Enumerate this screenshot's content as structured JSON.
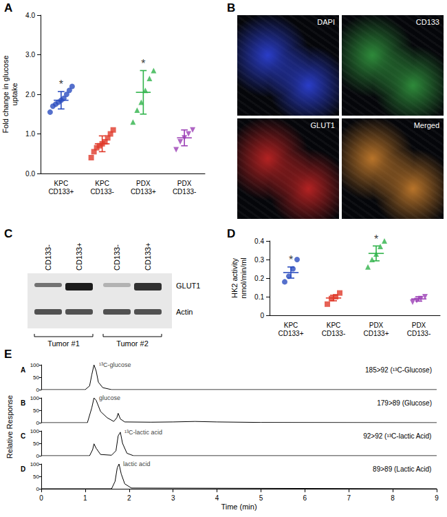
{
  "chart_data": [
    {
      "panel": "A",
      "type": "scatter",
      "y_label": "Fold change in glucose uptake",
      "categories": [
        "KPC CD133+",
        "KPC CD133-",
        "PDX CD133+",
        "PDX CD133-"
      ],
      "ylim": [
        0,
        4
      ],
      "yticks": [
        {
          "value": 0,
          "label": "0.0"
        },
        {
          "value": 1,
          "label": "1.0"
        },
        {
          "value": 2,
          "label": "2.0"
        },
        {
          "value": 3,
          "label": "3.0"
        },
        {
          "value": 4,
          "label": "4.0"
        }
      ],
      "grid": false,
      "groups": [
        {
          "category": "KPC CD133+",
          "color": "#2a4cbf",
          "marker": "circle",
          "values": [
            1.55,
            1.7,
            1.75,
            1.8,
            1.85,
            1.9,
            2.0,
            2.1,
            2.2
          ],
          "mean": 1.85,
          "error": 0.22
        },
        {
          "category": "KPC CD133-",
          "color": "#e03a2a",
          "marker": "square",
          "values": [
            0.4,
            0.55,
            0.65,
            0.7,
            0.75,
            0.8,
            0.9,
            1.0,
            1.1
          ],
          "mean": 0.75,
          "error": 0.2
        },
        {
          "category": "PDX CD133+",
          "color": "#2fb34a",
          "marker": "triangle",
          "values": [
            1.3,
            1.6,
            1.8,
            2.1,
            2.4,
            2.6
          ],
          "mean": 2.05,
          "error": 0.55
        },
        {
          "category": "PDX CD133-",
          "color": "#9b3fb5",
          "marker": "triangle-down",
          "values": [
            0.6,
            0.8,
            0.9,
            1.0,
            1.1
          ],
          "mean": 0.9,
          "error": 0.2
        }
      ],
      "annotations": [
        {
          "category": "KPC CD133+",
          "text": "*"
        },
        {
          "category": "PDX CD133+",
          "text": "*"
        }
      ]
    },
    {
      "panel": "D",
      "type": "scatter",
      "y_label": "HK2 activity nmol/min/ml",
      "categories": [
        "KPC CD133+",
        "KPC CD133-",
        "PDX CD133+",
        "PDX CD133-"
      ],
      "ylim": [
        0,
        0.4
      ],
      "yticks": [
        0,
        0.1,
        0.2,
        0.3,
        0.4
      ],
      "grid": false,
      "groups": [
        {
          "category": "KPC CD133+",
          "color": "#2a4cbf",
          "marker": "circle",
          "values": [
            0.18,
            0.21,
            0.25,
            0.3
          ],
          "mean": 0.23,
          "error": 0.03
        },
        {
          "category": "KPC CD133-",
          "color": "#e03a2a",
          "marker": "square",
          "values": [
            0.06,
            0.09,
            0.1,
            0.12
          ],
          "mean": 0.093,
          "error": 0.015
        },
        {
          "category": "PDX CD133+",
          "color": "#2fb34a",
          "marker": "triangle",
          "values": [
            0.26,
            0.3,
            0.33,
            0.37,
            0.4
          ],
          "mean": 0.333,
          "error": 0.04
        },
        {
          "category": "PDX CD133-",
          "color": "#9b3fb5",
          "marker": "triangle-down",
          "values": [
            0.07,
            0.08,
            0.09,
            0.1
          ],
          "mean": 0.088,
          "error": 0.012
        }
      ],
      "annotations": [
        {
          "category": "KPC CD133+",
          "text": "*"
        },
        {
          "category": "PDX CD133+",
          "text": "*"
        }
      ]
    },
    {
      "panel": "E",
      "type": "line",
      "x_label": "Time (min)",
      "y_label": "Relative Response",
      "xlim": [
        0,
        9
      ],
      "xticks": [
        0,
        1,
        2,
        3,
        4,
        5,
        6,
        7,
        8,
        9
      ],
      "ylim": [
        0,
        100
      ],
      "yticks": [
        0,
        50,
        100
      ],
      "traces": [
        {
          "label": "A",
          "transition": "185>92 (¹³C-Glucose)",
          "color": "#000000",
          "x": [
            0,
            1.0,
            1.1,
            1.15,
            1.2,
            1.25,
            1.3,
            1.4,
            1.6,
            9
          ],
          "values": [
            0,
            0,
            15,
            60,
            100,
            75,
            30,
            8,
            0,
            0
          ],
          "annotations": [
            {
              "text": "¹³C-glucose",
              "x": 1.22,
              "y": 100
            }
          ]
        },
        {
          "label": "B",
          "transition": "179>89 (Glucose)",
          "color": "#000000",
          "x": [
            0,
            1.05,
            1.15,
            1.2,
            1.25,
            1.35,
            1.5,
            1.65,
            1.72,
            1.75,
            1.8,
            1.9,
            2.5,
            3.0,
            3.5,
            4.0,
            5.0,
            9
          ],
          "values": [
            0,
            0,
            60,
            100,
            90,
            45,
            20,
            5,
            20,
            38,
            15,
            3,
            2,
            3,
            5,
            3,
            1,
            0
          ],
          "annotations": [
            {
              "text": "glucose",
              "x": 1.22,
              "y": 100
            }
          ]
        },
        {
          "label": "C",
          "transition": "92>92 (¹³C-lactic Acid)",
          "color": "#000000",
          "x": [
            0,
            1.1,
            1.17,
            1.2,
            1.25,
            1.35,
            1.6,
            1.7,
            1.75,
            1.8,
            1.85,
            1.95,
            2.1,
            9
          ],
          "values": [
            0,
            0,
            25,
            48,
            30,
            5,
            2,
            20,
            80,
            95,
            50,
            10,
            0,
            0
          ],
          "annotations": [
            {
              "text": "¹³C-lactic acid",
              "x": 1.8,
              "y": 95
            }
          ]
        },
        {
          "label": "D",
          "transition": "89>89 (Lactic Acid)",
          "color": "#000000",
          "x": [
            0,
            1.6,
            1.68,
            1.73,
            1.77,
            1.82,
            1.9,
            2.05,
            9
          ],
          "values": [
            0,
            0,
            30,
            85,
            100,
            60,
            20,
            3,
            0
          ],
          "annotations": [
            {
              "text": "lactic acid",
              "x": 1.77,
              "y": 100
            }
          ]
        }
      ]
    }
  ],
  "image_panel": {
    "panel": "B",
    "images": [
      {
        "label": "DAPI",
        "color": "#2a3dc8"
      },
      {
        "label": "CD133",
        "color": "#2e8a3a"
      },
      {
        "label": "GLUT1",
        "color": "#b32222"
      },
      {
        "label": "Merged",
        "color": "#b8742a"
      }
    ]
  },
  "blot_panel": {
    "panel": "C",
    "lanes": [
      "CD133-",
      "CD133+",
      "CD133-",
      "CD133+"
    ],
    "bands": [
      "GLUT1",
      "Actin"
    ],
    "groups": [
      "Tumor #1",
      "Tumor #2"
    ]
  }
}
